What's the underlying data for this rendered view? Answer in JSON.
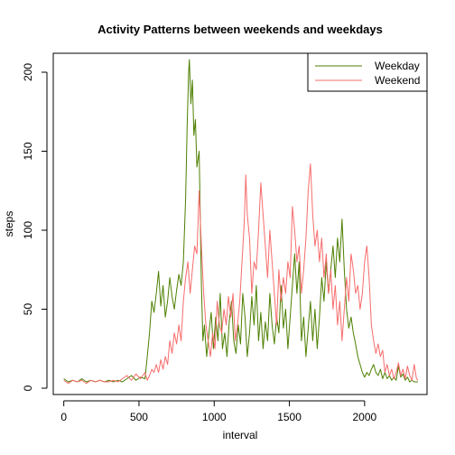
{
  "chart_data": {
    "type": "line",
    "title": "Activity Patterns between weekends and weekdays",
    "xlabel": "interval",
    "ylabel": "steps",
    "xlim": [
      -70,
      2415
    ],
    "ylim": [
      -4,
      212
    ],
    "x_ticks": [
      0,
      500,
      1000,
      1500,
      2000
    ],
    "y_ticks": [
      0,
      50,
      100,
      150,
      200
    ],
    "grid": false,
    "legend_position": "top-right",
    "series": [
      {
        "name": "Weekday",
        "color": "#4D7F00",
        "points": [
          [
            0,
            6
          ],
          [
            30,
            4
          ],
          [
            60,
            5
          ],
          [
            90,
            4
          ],
          [
            120,
            6
          ],
          [
            150,
            4
          ],
          [
            180,
            5
          ],
          [
            210,
            4
          ],
          [
            240,
            5
          ],
          [
            270,
            4
          ],
          [
            300,
            5
          ],
          [
            330,
            4
          ],
          [
            360,
            5
          ],
          [
            390,
            4
          ],
          [
            420,
            6
          ],
          [
            450,
            8
          ],
          [
            480,
            5
          ],
          [
            510,
            7
          ],
          [
            540,
            6
          ],
          [
            555,
            20
          ],
          [
            570,
            35
          ],
          [
            585,
            55
          ],
          [
            600,
            48
          ],
          [
            615,
            60
          ],
          [
            630,
            74
          ],
          [
            645,
            52
          ],
          [
            660,
            65
          ],
          [
            675,
            45
          ],
          [
            690,
            55
          ],
          [
            705,
            70
          ],
          [
            720,
            58
          ],
          [
            735,
            50
          ],
          [
            750,
            62
          ],
          [
            765,
            72
          ],
          [
            780,
            65
          ],
          [
            795,
            80
          ],
          [
            810,
            120
          ],
          [
            820,
            165
          ],
          [
            830,
            200
          ],
          [
            835,
            208
          ],
          [
            845,
            180
          ],
          [
            855,
            195
          ],
          [
            865,
            160
          ],
          [
            875,
            170
          ],
          [
            885,
            140
          ],
          [
            900,
            150
          ],
          [
            915,
            65
          ],
          [
            925,
            30
          ],
          [
            935,
            40
          ],
          [
            950,
            20
          ],
          [
            965,
            35
          ],
          [
            980,
            48
          ],
          [
            995,
            25
          ],
          [
            1010,
            45
          ],
          [
            1025,
            30
          ],
          [
            1040,
            60
          ],
          [
            1055,
            25
          ],
          [
            1070,
            35
          ],
          [
            1085,
            20
          ],
          [
            1100,
            42
          ],
          [
            1115,
            55
          ],
          [
            1130,
            30
          ],
          [
            1145,
            22
          ],
          [
            1160,
            40
          ],
          [
            1175,
            28
          ],
          [
            1190,
            60
          ],
          [
            1205,
            45
          ],
          [
            1220,
            20
          ],
          [
            1235,
            35
          ],
          [
            1250,
            58
          ],
          [
            1265,
            40
          ],
          [
            1280,
            65
          ],
          [
            1295,
            30
          ],
          [
            1310,
            48
          ],
          [
            1325,
            25
          ],
          [
            1340,
            42
          ],
          [
            1355,
            30
          ],
          [
            1370,
            60
          ],
          [
            1385,
            40
          ],
          [
            1400,
            28
          ],
          [
            1415,
            45
          ],
          [
            1430,
            35
          ],
          [
            1445,
            65
          ],
          [
            1460,
            38
          ],
          [
            1475,
            50
          ],
          [
            1490,
            25
          ],
          [
            1505,
            45
          ],
          [
            1520,
            65
          ],
          [
            1535,
            85
          ],
          [
            1550,
            60
          ],
          [
            1565,
            80
          ],
          [
            1580,
            30
          ],
          [
            1595,
            45
          ],
          [
            1610,
            20
          ],
          [
            1625,
            38
          ],
          [
            1640,
            55
          ],
          [
            1655,
            30
          ],
          [
            1670,
            50
          ],
          [
            1685,
            25
          ],
          [
            1700,
            45
          ],
          [
            1715,
            70
          ],
          [
            1730,
            55
          ],
          [
            1745,
            80
          ],
          [
            1760,
            60
          ],
          [
            1775,
            75
          ],
          [
            1790,
            90
          ],
          [
            1805,
            70
          ],
          [
            1820,
            95
          ],
          [
            1835,
            80
          ],
          [
            1850,
            107
          ],
          [
            1865,
            75
          ],
          [
            1880,
            50
          ],
          [
            1895,
            38
          ],
          [
            1910,
            45
          ],
          [
            1925,
            35
          ],
          [
            1940,
            28
          ],
          [
            1955,
            20
          ],
          [
            1970,
            15
          ],
          [
            1985,
            10
          ],
          [
            2000,
            7
          ],
          [
            2015,
            10
          ],
          [
            2030,
            8
          ],
          [
            2045,
            12
          ],
          [
            2060,
            15
          ],
          [
            2075,
            10
          ],
          [
            2090,
            8
          ],
          [
            2105,
            12
          ],
          [
            2120,
            6
          ],
          [
            2135,
            10
          ],
          [
            2150,
            6
          ],
          [
            2165,
            8
          ],
          [
            2180,
            5
          ],
          [
            2195,
            7
          ],
          [
            2210,
            5
          ],
          [
            2225,
            14
          ],
          [
            2240,
            7
          ],
          [
            2255,
            9
          ],
          [
            2270,
            5
          ],
          [
            2285,
            7
          ],
          [
            2300,
            4
          ],
          [
            2315,
            5
          ],
          [
            2330,
            4
          ],
          [
            2355,
            4
          ]
        ]
      },
      {
        "name": "Weekend",
        "color": "#F76C6C",
        "points": [
          [
            0,
            5
          ],
          [
            30,
            3
          ],
          [
            60,
            5
          ],
          [
            90,
            4
          ],
          [
            120,
            5
          ],
          [
            150,
            3
          ],
          [
            180,
            5
          ],
          [
            210,
            4
          ],
          [
            240,
            5
          ],
          [
            270,
            4
          ],
          [
            300,
            4
          ],
          [
            330,
            5
          ],
          [
            360,
            4
          ],
          [
            390,
            6
          ],
          [
            420,
            8
          ],
          [
            450,
            5
          ],
          [
            480,
            9
          ],
          [
            510,
            6
          ],
          [
            540,
            10
          ],
          [
            555,
            5
          ],
          [
            570,
            8
          ],
          [
            585,
            12
          ],
          [
            600,
            10
          ],
          [
            615,
            15
          ],
          [
            630,
            10
          ],
          [
            645,
            18
          ],
          [
            660,
            12
          ],
          [
            675,
            20
          ],
          [
            690,
            15
          ],
          [
            705,
            30
          ],
          [
            720,
            22
          ],
          [
            735,
            35
          ],
          [
            750,
            28
          ],
          [
            765,
            40
          ],
          [
            780,
            30
          ],
          [
            795,
            55
          ],
          [
            810,
            70
          ],
          [
            825,
            80
          ],
          [
            840,
            60
          ],
          [
            855,
            75
          ],
          [
            870,
            90
          ],
          [
            885,
            85
          ],
          [
            900,
            125
          ],
          [
            915,
            90
          ],
          [
            930,
            60
          ],
          [
            945,
            40
          ],
          [
            960,
            30
          ],
          [
            975,
            20
          ],
          [
            990,
            35
          ],
          [
            1005,
            25
          ],
          [
            1020,
            55
          ],
          [
            1035,
            40
          ],
          [
            1050,
            35
          ],
          [
            1065,
            50
          ],
          [
            1080,
            40
          ],
          [
            1095,
            58
          ],
          [
            1110,
            45
          ],
          [
            1125,
            60
          ],
          [
            1140,
            30
          ],
          [
            1155,
            40
          ],
          [
            1170,
            55
          ],
          [
            1185,
            80
          ],
          [
            1200,
            105
          ],
          [
            1210,
            135
          ],
          [
            1220,
            110
          ],
          [
            1235,
            95
          ],
          [
            1250,
            60
          ],
          [
            1265,
            80
          ],
          [
            1280,
            75
          ],
          [
            1295,
            100
          ],
          [
            1310,
            130
          ],
          [
            1325,
            110
          ],
          [
            1340,
            90
          ],
          [
            1355,
            70
          ],
          [
            1370,
            100
          ],
          [
            1385,
            80
          ],
          [
            1400,
            60
          ],
          [
            1415,
            40
          ],
          [
            1430,
            75
          ],
          [
            1445,
            55
          ],
          [
            1460,
            70
          ],
          [
            1475,
            60
          ],
          [
            1490,
            80
          ],
          [
            1505,
            70
          ],
          [
            1520,
            115
          ],
          [
            1535,
            100
          ],
          [
            1550,
            80
          ],
          [
            1565,
            90
          ],
          [
            1580,
            60
          ],
          [
            1595,
            75
          ],
          [
            1610,
            95
          ],
          [
            1625,
            125
          ],
          [
            1640,
            142
          ],
          [
            1655,
            110
          ],
          [
            1670,
            90
          ],
          [
            1685,
            100
          ],
          [
            1700,
            80
          ],
          [
            1715,
            95
          ],
          [
            1730,
            70
          ],
          [
            1745,
            85
          ],
          [
            1760,
            60
          ],
          [
            1775,
            75
          ],
          [
            1790,
            50
          ],
          [
            1805,
            65
          ],
          [
            1820,
            40
          ],
          [
            1835,
            55
          ],
          [
            1850,
            30
          ],
          [
            1865,
            50
          ],
          [
            1880,
            70
          ],
          [
            1895,
            55
          ],
          [
            1910,
            85
          ],
          [
            1925,
            75
          ],
          [
            1940,
            60
          ],
          [
            1955,
            65
          ],
          [
            1970,
            50
          ],
          [
            1985,
            60
          ],
          [
            2000,
            80
          ],
          [
            2015,
            90
          ],
          [
            2030,
            70
          ],
          [
            2045,
            40
          ],
          [
            2060,
            30
          ],
          [
            2075,
            22
          ],
          [
            2090,
            28
          ],
          [
            2105,
            20
          ],
          [
            2120,
            24
          ],
          [
            2135,
            10
          ],
          [
            2150,
            15
          ],
          [
            2165,
            8
          ],
          [
            2180,
            12
          ],
          [
            2195,
            6
          ],
          [
            2210,
            10
          ],
          [
            2225,
            16
          ],
          [
            2240,
            8
          ],
          [
            2255,
            12
          ],
          [
            2270,
            6
          ],
          [
            2285,
            14
          ],
          [
            2300,
            8
          ],
          [
            2315,
            5
          ],
          [
            2330,
            15
          ],
          [
            2345,
            6
          ],
          [
            2355,
            5
          ]
        ]
      }
    ]
  }
}
